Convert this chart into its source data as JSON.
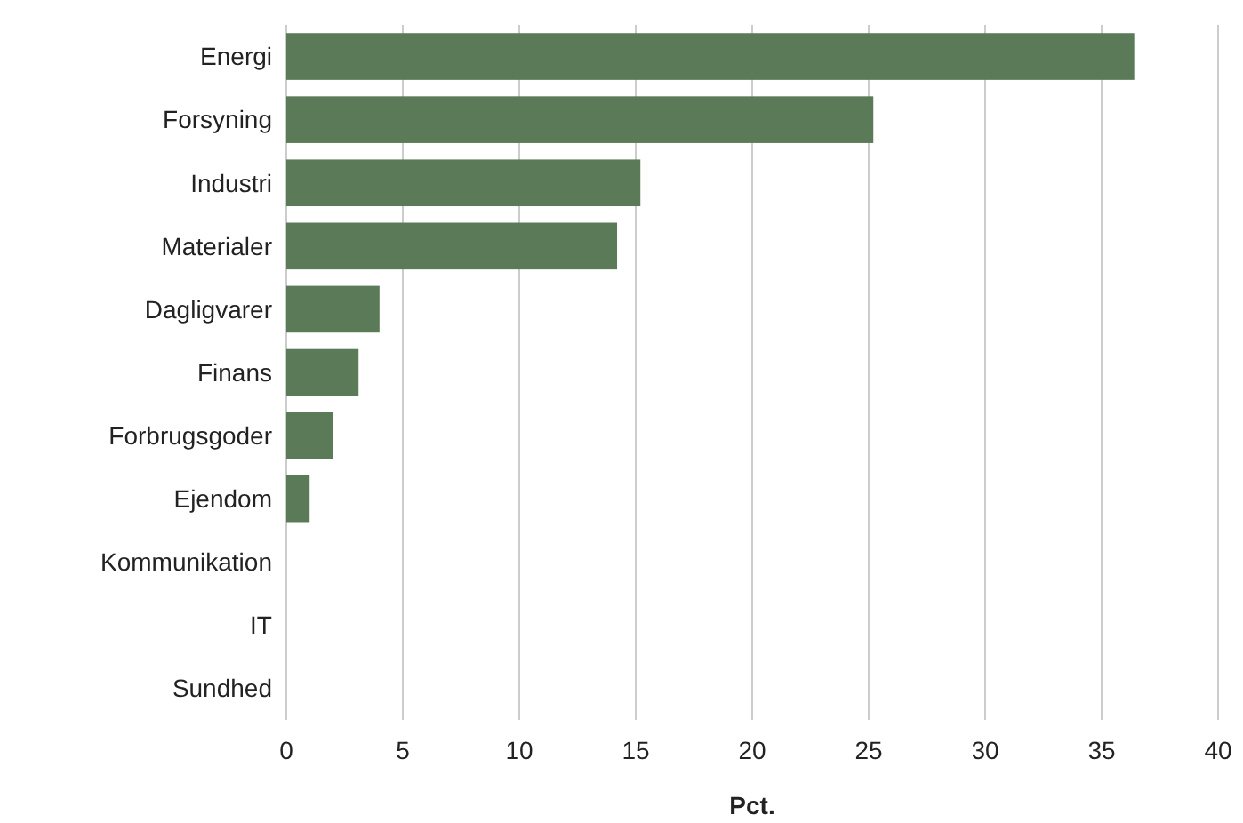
{
  "chart_data": {
    "type": "bar",
    "orientation": "horizontal",
    "xlabel": "Pct.",
    "categories": [
      "Energi",
      "Forsyning",
      "Industri",
      "Materialer",
      "Dagligvarer",
      "Finans",
      "Forbrugsgoder",
      "Ejendom",
      "Kommunikation",
      "IT",
      "Sundhed"
    ],
    "values": [
      36.4,
      25.2,
      15.2,
      14.2,
      4.0,
      3.1,
      2.0,
      1.0,
      0,
      0,
      0
    ],
    "color": "#5b7a58",
    "xlim": [
      0,
      40
    ],
    "xticks": [
      0,
      5,
      10,
      15,
      20,
      25,
      30,
      35,
      40
    ],
    "grid": "x"
  }
}
